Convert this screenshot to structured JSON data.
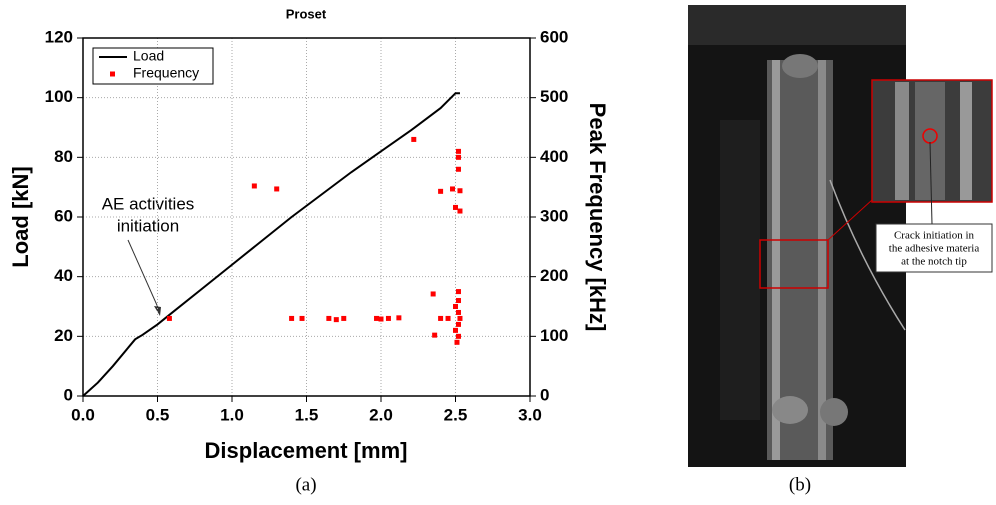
{
  "chart_data": {
    "type": "line",
    "title": "Proset",
    "x_label": "Displacement [mm]",
    "y_label": "Load [kN]",
    "y2_label": "Peak Frequency [kHz]",
    "xlim": [
      0,
      3
    ],
    "xticks": [
      {
        "value": 0,
        "label": "0.0"
      },
      0.5,
      {
        "value": 1,
        "label": "1.0"
      },
      1.5,
      {
        "value": 2,
        "label": "2.0"
      },
      2.5,
      {
        "value": 3,
        "label": "3.0"
      }
    ],
    "ylim": [
      0,
      120
    ],
    "yticks": [
      0,
      20,
      40,
      60,
      80,
      100,
      120
    ],
    "y2lim": [
      0,
      600
    ],
    "y2ticks": [
      0,
      100,
      200,
      300,
      400,
      500,
      600
    ],
    "grid": true,
    "legend": "upper left",
    "annotation": [
      "AE activities",
      "initiation"
    ],
    "series": [
      {
        "name": "Load",
        "type": "line",
        "color": "#000000",
        "x": [
          0,
          0.1,
          0.2,
          0.3,
          0.35,
          0.4,
          0.5,
          0.6,
          0.8,
          1.0,
          1.2,
          1.4,
          1.6,
          1.8,
          2.0,
          2.2,
          2.4,
          2.5,
          2.53
        ],
        "values": [
          0,
          4.5,
          10,
          16,
          19,
          20.5,
          24,
          28,
          36,
          44,
          52,
          60,
          67.5,
          75,
          82,
          89,
          96.5,
          101.5,
          101.5
        ]
      },
      {
        "name": "Frequency",
        "type": "scatter",
        "color": "#ff0000",
        "axis": "y2",
        "x": [
          0.58,
          1.15,
          1.3,
          1.4,
          1.47,
          1.65,
          1.7,
          1.75,
          1.97,
          2.0,
          2.05,
          2.12,
          2.22,
          2.35,
          2.36,
          2.4,
          2.4,
          2.45,
          2.48,
          2.5,
          2.5,
          2.5,
          2.52,
          2.52,
          2.52,
          2.53,
          2.53,
          2.52,
          2.52,
          2.52,
          2.52,
          2.52,
          2.51,
          2.53
        ],
        "values": [
          130,
          352,
          347,
          130,
          130,
          130,
          128,
          130,
          130,
          129,
          130,
          131,
          430,
          171,
          102,
          343,
          130,
          130,
          347,
          316,
          150,
          110,
          410,
          400,
          380,
          344,
          310,
          175,
          160,
          140,
          120,
          100,
          90,
          130
        ]
      }
    ]
  },
  "captions": [
    "(a)",
    "(b)"
  ],
  "photo": {
    "label": [
      "Crack initiation in",
      "the adhesive materia",
      "at the notch tip"
    ]
  }
}
